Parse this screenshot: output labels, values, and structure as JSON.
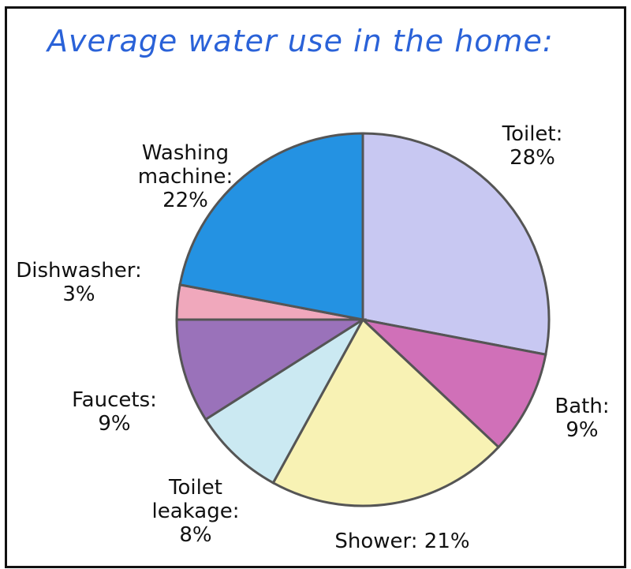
{
  "chart_data": {
    "type": "pie",
    "title": "Average water use in the home:",
    "values": [
      28,
      9,
      21,
      8,
      9,
      3,
      22
    ],
    "value_labels": [
      "Toilet: 28%",
      "Bath:\n9%",
      "Shower: 21%",
      "Toilet\nleakage:\n8%",
      "Faucets:\n9%",
      "Dishwasher:\n3%",
      "Washing\nmachine:\n22%"
    ],
    "colors": [
      "#c8c8f2",
      "#d070b8",
      "#f8f2b4",
      "#cbe9f2",
      "#9a72ba",
      "#f0a8bc",
      "#2492e2"
    ]
  }
}
